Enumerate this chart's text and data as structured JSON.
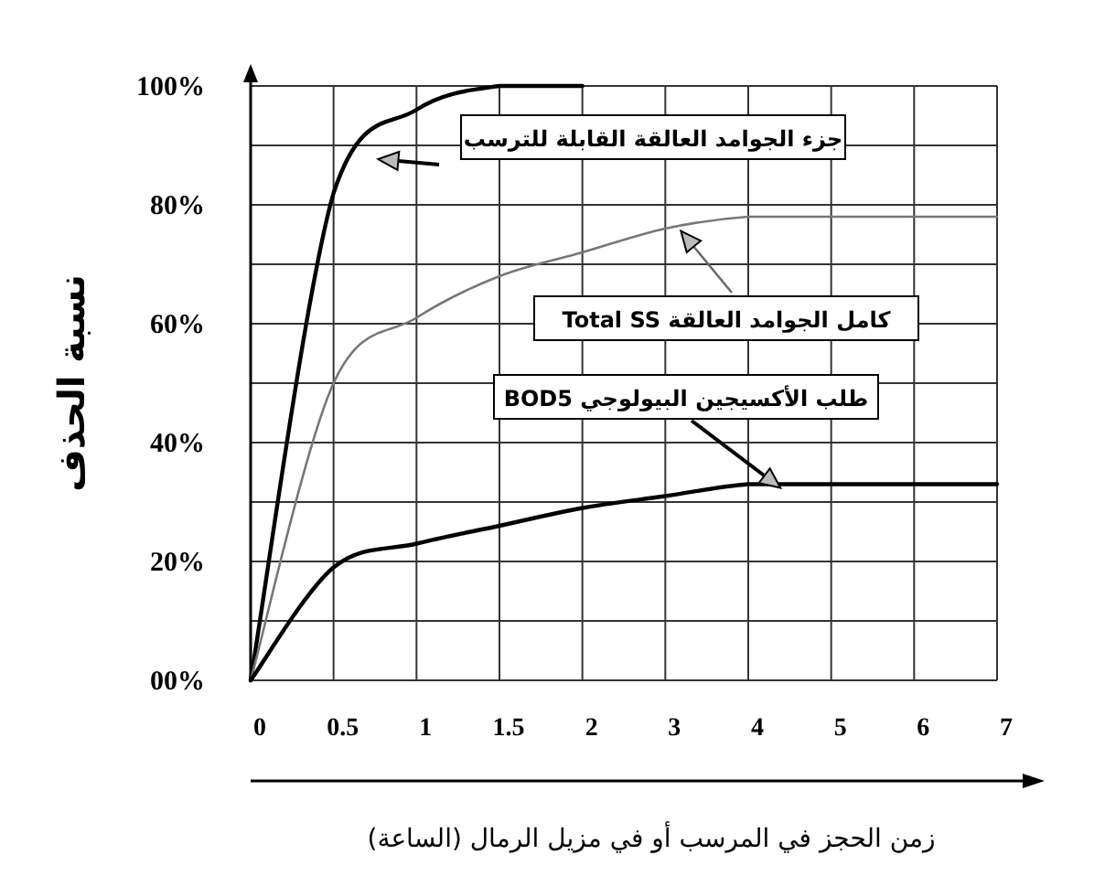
{
  "chart_data": {
    "type": "line",
    "xlabel": "زمن الحجز في المرسب أو في مزيل الرمال (الساعة)",
    "ylabel": "نسبة الحذف",
    "categories": [
      "0",
      "0.5",
      "1",
      "1.5",
      "2",
      "3",
      "4",
      "5",
      "6",
      "7"
    ],
    "ylim": [
      0,
      100
    ],
    "yticks": [
      {
        "value": 0,
        "label": "00%"
      },
      {
        "value": 10,
        "label": null
      },
      {
        "value": 20,
        "label": "20%"
      },
      {
        "value": 30,
        "label": null
      },
      {
        "value": 40,
        "label": "40%"
      },
      {
        "value": 50,
        "label": null
      },
      {
        "value": 60,
        "label": "60%"
      },
      {
        "value": 70,
        "label": null
      },
      {
        "value": 80,
        "label": "80%"
      },
      {
        "value": 90,
        "label": null
      },
      {
        "value": 100,
        "label": "100%"
      }
    ],
    "grid": true,
    "legend": false,
    "marker": "none",
    "line_style": "solid",
    "series": [
      {
        "name": "جزء الجوامد العالقة القابلة للترسب",
        "color": "#000000",
        "values": [
          0,
          82,
          96,
          100,
          100,
          null,
          null,
          null,
          null,
          null
        ]
      },
      {
        "name": "كامل الجوامد العالقة Total SS",
        "color": "#777777",
        "values": [
          0,
          50,
          61,
          68,
          72,
          76,
          78,
          78,
          78,
          78
        ]
      },
      {
        "name": "طلب الأكسيجين البيولوجي BOD5",
        "color": "#000000",
        "values": [
          0,
          19,
          23,
          26,
          29,
          31,
          33,
          33,
          33,
          33
        ]
      }
    ]
  }
}
